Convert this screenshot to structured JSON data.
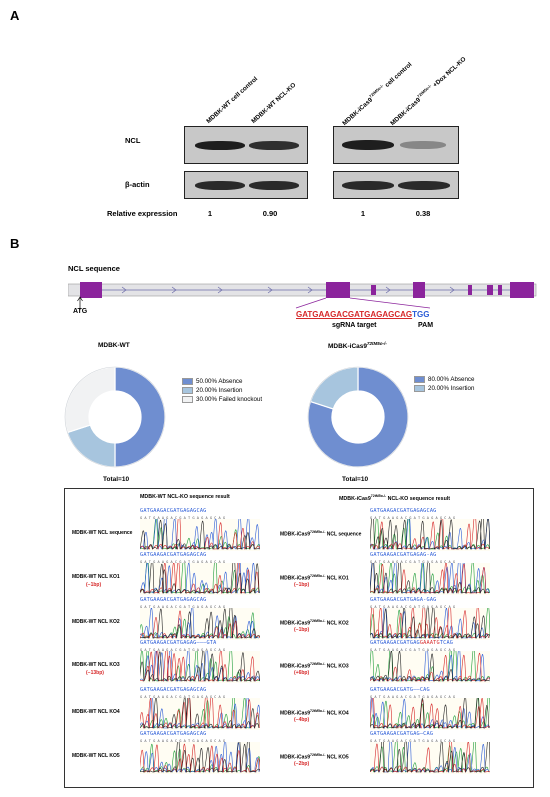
{
  "panelA": {
    "label": "A",
    "lanes": [
      {
        "pre": "MDBK-WT cell control",
        "sup": "",
        "post": ""
      },
      {
        "pre": "MDBK-WT NCL-KO",
        "sup": "",
        "post": ""
      },
      {
        "pre": "MDBK-iCas9",
        "sup": "72tM5o-/-",
        "post": " cell control"
      },
      {
        "pre": "MDBK-iCas9",
        "sup": "72tM5o-/-",
        "post": " +Dox NCL-KO"
      }
    ],
    "rows": {
      "ncl": "NCL",
      "actin": "β-actin",
      "relexp": "Relative expression"
    },
    "relative_expression": [
      "1",
      "0.90",
      "1",
      "0.38"
    ],
    "ncl_band_intensity": [
      1.0,
      0.9,
      1.0,
      0.38
    ]
  },
  "panelB": {
    "label": "B",
    "gene_title": "NCL sequence",
    "atg": "ATG",
    "sgrna_seq": "GATGAAGACGATGAGAGCAG",
    "pam_seq": "TGG",
    "sgrna_label": "sgRNA target",
    "pam_label": "PAM",
    "donuts": [
      {
        "title": "MDBK-WT",
        "title_sup": "",
        "total": "Total=10",
        "slices": [
          {
            "label": "50.00%  Absence",
            "value": 50,
            "color": "#6f8ed0"
          },
          {
            "label": "20.00%  Insertion",
            "value": 20,
            "color": "#a7c5de"
          },
          {
            "label": "30.00%  Failed knockout",
            "value": 30,
            "color": "#f1f2f3"
          }
        ]
      },
      {
        "title": "MDBK-iCas9",
        "title_sup": "72tM5o-/-",
        "total": "Total=10",
        "slices": [
          {
            "label": "80.00%  Absence",
            "value": 80,
            "color": "#6f8ed0"
          },
          {
            "label": "20.00%  Insertion",
            "value": 20,
            "color": "#a7c5de"
          }
        ]
      }
    ],
    "seq_results": {
      "left_title": "MDBK-WT NCL-KO sequence result",
      "right_title_pre": "MDBK-iCas9",
      "right_title_sup": "72tM5o-/-",
      "right_title_post": " NCL-KO sequence result",
      "left": [
        {
          "name": "MDBK-WT NCL sequence",
          "change": "",
          "seq": "GATGAAGACGATGAGAGCAG",
          "ins": ""
        },
        {
          "name": "MDBK-WT NCL KO1",
          "change": "(−1bp)",
          "seq": "GATGAAGACGATGAGAGCAG",
          "ins": ""
        },
        {
          "name": "MDBK-WT NCL KO2",
          "change": "",
          "seq": "GATGAAGACGATGAGAGCAG",
          "ins": ""
        },
        {
          "name": "MDBK-WT NCL KO3",
          "change": "(−13bp)",
          "seq": "GATGAAGACGATGAGAG———GTA",
          "ins": ""
        },
        {
          "name": "MDBK-WT NCL KO4",
          "change": "",
          "seq": "GATGAAGACGATGAGAGCAG",
          "ins": ""
        },
        {
          "name": "MDBK-WT NCL KO5",
          "change": "",
          "seq": "GATGAAGACGATGAGAGCAG",
          "ins": ""
        }
      ],
      "right": [
        {
          "pre": "MDBK-iCas9",
          "sup": "72tM5o-/-",
          "post": " NCL sequence",
          "change": "",
          "seq": "GATGAAGACGATGAGAGCAG",
          "ins": "",
          "tail": ""
        },
        {
          "pre": "MDBK-iCas9",
          "sup": "72tM5o-/-",
          "post": " NCL KO1",
          "change": "(−1bp)",
          "seq": "GATGAAGACGATGAGAG-AG",
          "ins": "",
          "tail": ""
        },
        {
          "pre": "MDBK-iCas9",
          "sup": "72tM5o-/-",
          "post": " NCL KO2",
          "change": "(−1bp)",
          "seq": "GATGAAGACGATGAGA-GAG",
          "ins": "",
          "tail": ""
        },
        {
          "pre": "MDBK-iCas9",
          "sup": "72tM5o-/-",
          "post": " NCL KO3",
          "change": "(+6bp)",
          "seq": "GATGAAGACGATGAG",
          "ins": "GAAATG",
          "tail": "TCAG"
        },
        {
          "pre": "MDBK-iCas9",
          "sup": "72tM5o-/-",
          "post": " NCL KO4",
          "change": "(−4bp)",
          "seq": "GATGAAGACGATG——CAG",
          "ins": "",
          "tail": ""
        },
        {
          "pre": "MDBK-iCas9",
          "sup": "72tM5o-/-",
          "post": " NCL KO5",
          "change": "(−2bp)",
          "seq": "GATGAAGACGATGAG—CAG",
          "ins": "",
          "tail": ""
        }
      ]
    }
  }
}
